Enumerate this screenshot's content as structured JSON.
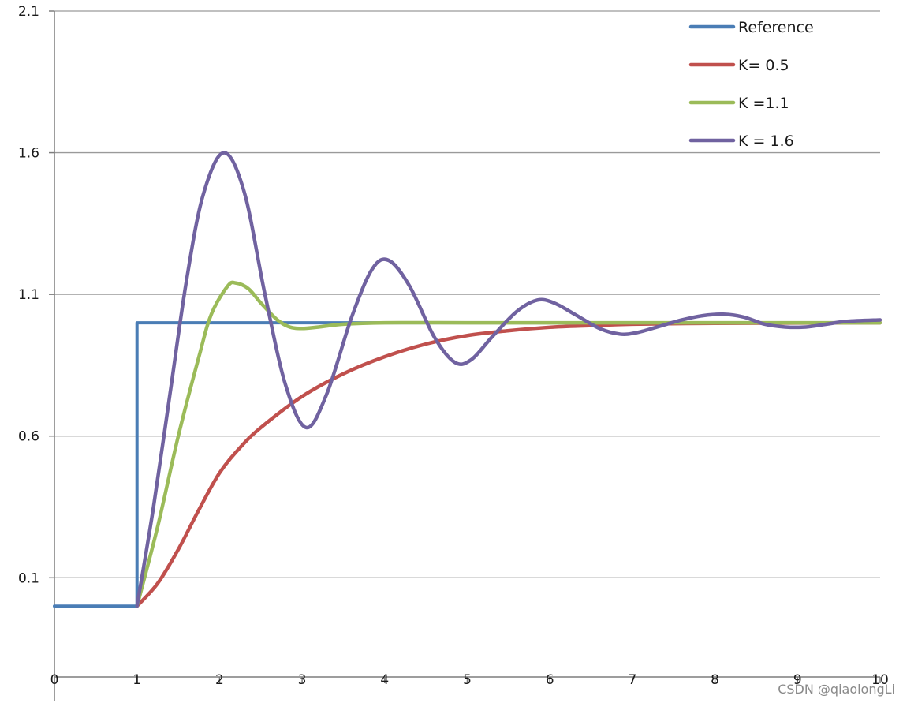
{
  "chart_data": {
    "type": "line",
    "title": "",
    "xlabel": "",
    "ylabel": "",
    "xlim": [
      0,
      10
    ],
    "ylim": [
      -0.25,
      2.1
    ],
    "x_ticks": [
      0,
      1,
      2,
      3,
      4,
      5,
      6,
      7,
      8,
      9,
      10
    ],
    "y_ticks": [
      0.1,
      0.6,
      1.1,
      1.6,
      2.1
    ],
    "grid": "horizontal",
    "legend_position": "top-right",
    "series": [
      {
        "name": "Reference",
        "color": "#4a7db5",
        "x": [
          0,
          1,
          1,
          10
        ],
        "y": [
          0,
          0,
          1,
          1
        ]
      },
      {
        "name": "K= 0.5",
        "color": "#c0504d",
        "x": [
          1,
          1.25,
          1.5,
          1.75,
          2,
          2.25,
          2.5,
          3,
          3.5,
          4,
          4.5,
          5,
          5.5,
          6,
          6.5,
          7,
          8,
          9,
          10
        ],
        "y": [
          0,
          0.08,
          0.2,
          0.34,
          0.47,
          0.56,
          0.63,
          0.74,
          0.82,
          0.88,
          0.925,
          0.955,
          0.972,
          0.984,
          0.99,
          0.995,
          0.998,
          0.999,
          1.0
        ]
      },
      {
        "name": "K =1.1",
        "color": "#9bbb59",
        "x": [
          1,
          1.25,
          1.5,
          1.75,
          1.9,
          2.1,
          2.2,
          2.35,
          2.5,
          2.7,
          2.85,
          3,
          3.2,
          3.5,
          4,
          5,
          6,
          7,
          8,
          9,
          10
        ],
        "y": [
          0,
          0.28,
          0.6,
          0.88,
          1.03,
          1.13,
          1.14,
          1.12,
          1.07,
          1.01,
          0.985,
          0.98,
          0.985,
          0.995,
          1.0,
          1.0,
          1.0,
          1.0,
          1.0,
          1.0,
          1.0
        ]
      },
      {
        "name": "K = 1.6",
        "color": "#7062a0",
        "x": [
          1,
          1.2,
          1.4,
          1.6,
          1.8,
          2.05,
          2.3,
          2.55,
          2.8,
          3.05,
          3.3,
          3.6,
          3.85,
          4.05,
          4.3,
          4.6,
          4.85,
          5.05,
          5.3,
          5.6,
          5.85,
          6.05,
          6.3,
          6.6,
          6.85,
          7.05,
          7.3,
          7.6,
          7.85,
          8.1,
          8.35,
          8.6,
          8.85,
          9.1,
          9.35,
          9.6,
          10
        ],
        "y": [
          0,
          0.35,
          0.75,
          1.15,
          1.45,
          1.6,
          1.46,
          1.1,
          0.78,
          0.63,
          0.75,
          1.02,
          1.19,
          1.22,
          1.13,
          0.95,
          0.86,
          0.87,
          0.95,
          1.04,
          1.08,
          1.07,
          1.03,
          0.98,
          0.96,
          0.965,
          0.985,
          1.01,
          1.025,
          1.03,
          1.02,
          0.995,
          0.985,
          0.985,
          0.995,
          1.005,
          1.01
        ]
      }
    ]
  },
  "watermark": "CSDN @qiaolongLi"
}
